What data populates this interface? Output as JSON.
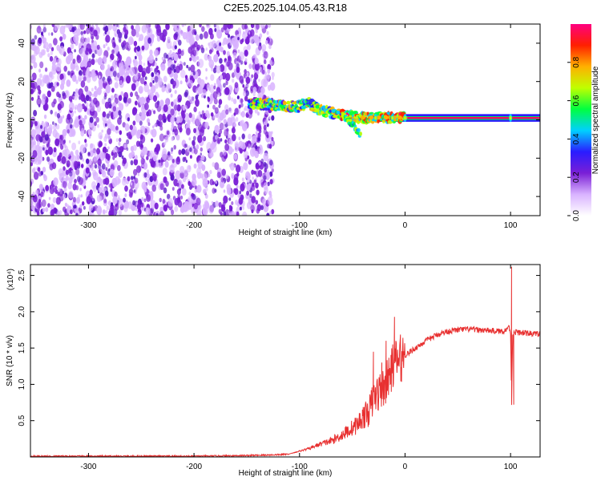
{
  "title": "C2E5.2025.104.05.43.R18",
  "chart_data": [
    {
      "type": "heatmap",
      "xlabel": "Height of straight line (km)",
      "ylabel": "Frequency (Hz)",
      "xlim": [
        -355,
        128
      ],
      "ylim": [
        -50,
        50
      ],
      "xticks": [
        -300,
        -200,
        -100,
        0,
        100
      ],
      "xtick_labels": [
        "-300",
        "-200",
        "-100",
        "0",
        "100"
      ],
      "yticks": [
        -40,
        -20,
        0,
        20,
        40
      ],
      "ytick_labels": [
        "-40",
        "-20",
        "0",
        "20",
        "40"
      ],
      "colorbar": {
        "label": "Normalized spectral amplitude",
        "range": [
          0,
          1
        ],
        "ticks": [
          0.0,
          0.2,
          0.4,
          0.6,
          0.8
        ],
        "tick_labels": [
          "0.0",
          "0.2",
          "0.4",
          "0.6",
          "0.8"
        ],
        "colormap": [
          "#ffffff",
          "#d9b3ff",
          "#7a1fd6",
          "#2a1cff",
          "#00d0ff",
          "#00ff40",
          "#c0ff00",
          "#ffb000",
          "#ff2000",
          "#ff0080"
        ]
      },
      "features": {
        "noise_region_x": [
          -355,
          -125
        ],
        "signal_track": [
          {
            "x": -148,
            "y": 9
          },
          {
            "x": -130,
            "y": 8
          },
          {
            "x": -115,
            "y": 7
          },
          {
            "x": -100,
            "y": 7
          },
          {
            "x": -92,
            "y": 9
          },
          {
            "x": -80,
            "y": 5
          },
          {
            "x": -65,
            "y": 3
          },
          {
            "x": -50,
            "y": 2
          },
          {
            "x": -40,
            "y": 1
          },
          {
            "x": -25,
            "y": 1
          },
          {
            "x": -10,
            "y": 1
          },
          {
            "x": 0,
            "y": 1
          },
          {
            "x": 128,
            "y": 1
          }
        ],
        "lower_branch": [
          {
            "x": -60,
            "y": 3
          },
          {
            "x": -50,
            "y": -2
          },
          {
            "x": -42,
            "y": -8
          }
        ],
        "steady_line_y": 1,
        "steady_line_x": [
          -25,
          128
        ],
        "peak_markers_x": [
          -28,
          -12,
          0,
          100
        ]
      }
    },
    {
      "type": "line",
      "xlabel": "Height of straight line (km)",
      "ylabel": "SNR (10 * v/v)",
      "scale_label": "(x10⁴)",
      "xlim": [
        -355,
        128
      ],
      "ylim": [
        0,
        2.65
      ],
      "xticks": [
        -300,
        -200,
        -100,
        0,
        100
      ],
      "xtick_labels": [
        "-300",
        "-200",
        "-100",
        "0",
        "100"
      ],
      "yticks": [
        0.5,
        1.0,
        1.5,
        2.0,
        2.5
      ],
      "ytick_labels": [
        "0.5",
        "1.0",
        "1.5",
        "2.0",
        "2.5"
      ],
      "color": "#e83030",
      "x": [
        -355,
        -300,
        -250,
        -200,
        -150,
        -120,
        -110,
        -100,
        -90,
        -80,
        -70,
        -60,
        -50,
        -45,
        -40,
        -35,
        -30,
        -25,
        -20,
        -15,
        -12,
        -10,
        -5,
        0,
        5,
        10,
        20,
        30,
        40,
        50,
        60,
        70,
        80,
        90,
        95,
        98,
        100,
        101,
        102,
        105,
        110,
        120,
        128
      ],
      "y": [
        0.01,
        0.01,
        0.01,
        0.01,
        0.02,
        0.03,
        0.04,
        0.08,
        0.12,
        0.18,
        0.22,
        0.3,
        0.4,
        0.45,
        0.55,
        0.6,
        0.8,
        0.9,
        0.95,
        1.1,
        1.25,
        1.3,
        1.35,
        1.4,
        1.45,
        1.5,
        1.6,
        1.68,
        1.73,
        1.75,
        1.76,
        1.75,
        1.74,
        1.73,
        1.74,
        1.8,
        1.72,
        0.75,
        1.7,
        1.72,
        1.71,
        1.7,
        1.69
      ],
      "spikes": [
        {
          "x": -30,
          "y": 1.45
        },
        {
          "x": -22,
          "y": 1.3
        },
        {
          "x": -18,
          "y": 1.6
        },
        {
          "x": -10,
          "y": 1.93
        },
        {
          "x": 101,
          "y": 2.62
        },
        {
          "x": 103,
          "y": 0.72
        }
      ]
    }
  ]
}
